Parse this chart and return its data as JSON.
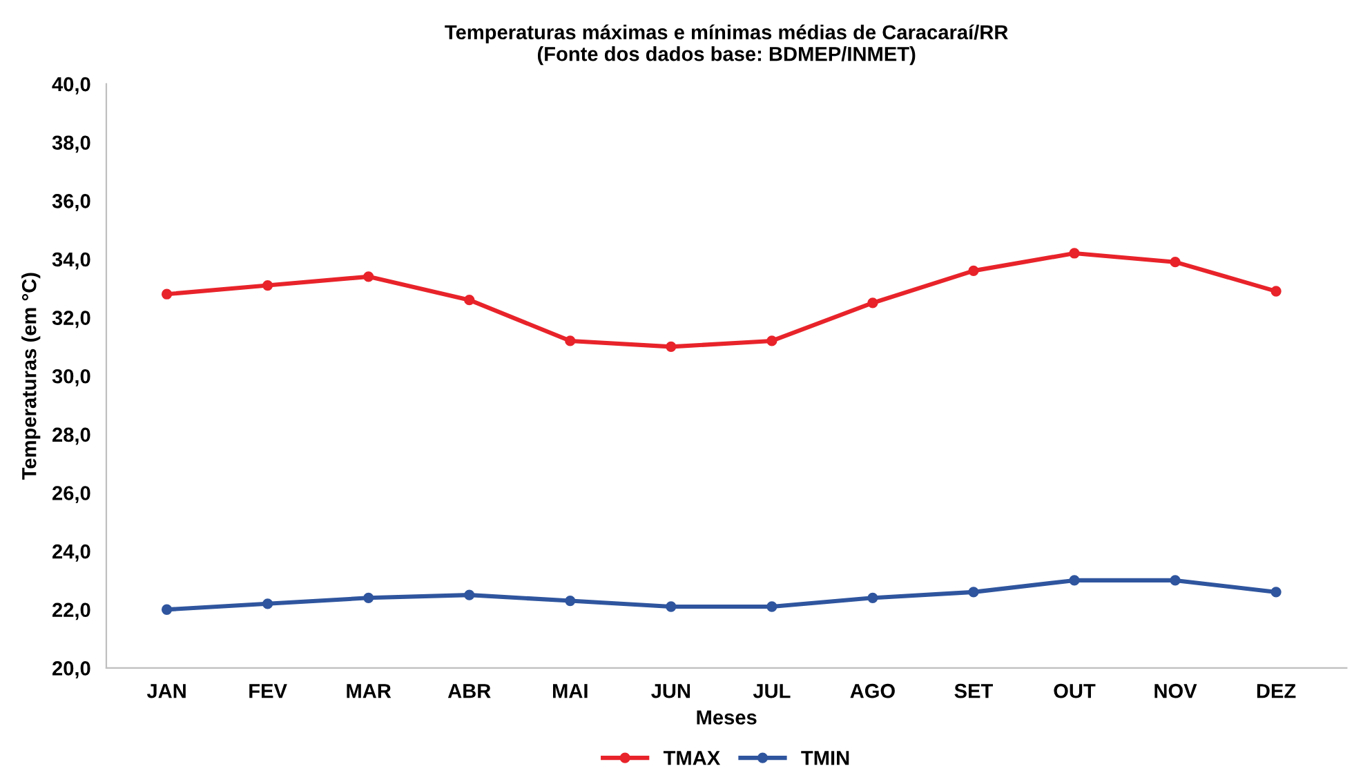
{
  "chart_data": {
    "type": "line",
    "title": "Temperaturas máximas e mínimas médias de Caracaraí/RR\n(Fonte dos dados base: BDMEP/INMET)",
    "xlabel": "Meses",
    "ylabel": "Temperaturas (em °C)",
    "categories": [
      "JAN",
      "FEV",
      "MAR",
      "ABR",
      "MAI",
      "JUN",
      "JUL",
      "AGO",
      "SET",
      "OUT",
      "NOV",
      "DEZ"
    ],
    "series": [
      {
        "name": "TMAX",
        "color": "#e8232a",
        "values": [
          32.8,
          33.1,
          33.4,
          32.6,
          31.2,
          31.0,
          31.2,
          32.5,
          33.6,
          34.2,
          33.9,
          32.9
        ]
      },
      {
        "name": "TMIN",
        "color": "#2f559e",
        "values": [
          22.0,
          22.2,
          22.4,
          22.5,
          22.3,
          22.1,
          22.1,
          22.4,
          22.6,
          23.0,
          23.0,
          22.6
        ]
      }
    ],
    "ylim": [
      20,
      40
    ],
    "yticks": [
      {
        "value": 20,
        "label": "20,0"
      },
      {
        "value": 22,
        "label": "22,0"
      },
      {
        "value": 24,
        "label": "24,0"
      },
      {
        "value": 26,
        "label": "26,0"
      },
      {
        "value": 28,
        "label": "28,0"
      },
      {
        "value": 30,
        "label": "30,0"
      },
      {
        "value": 32,
        "label": "32,0"
      },
      {
        "value": 34,
        "label": "34,0"
      },
      {
        "value": 36,
        "label": "36,0"
      },
      {
        "value": 38,
        "label": "38,0"
      },
      {
        "value": 40,
        "label": "40,0"
      }
    ],
    "grid": false,
    "legend": "bottom",
    "marker": "circle",
    "line_style": "solid"
  }
}
